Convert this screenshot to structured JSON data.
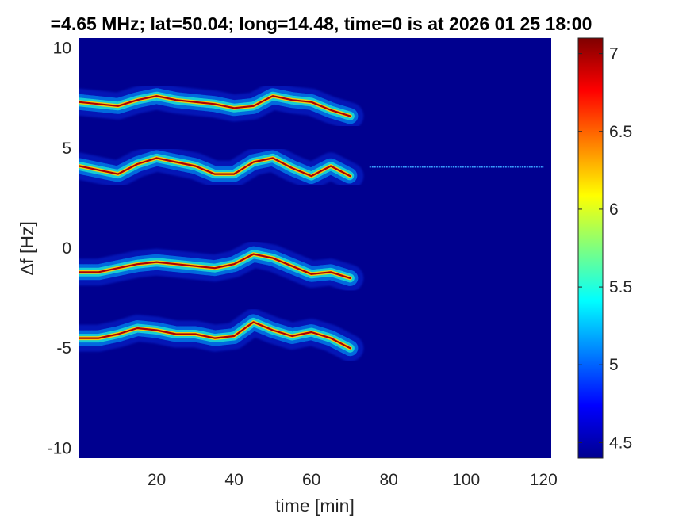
{
  "chart_data": {
    "type": "heatmap",
    "title": "=4.65 MHz;  lat=50.04; long=14.48, time=0 is at 2026 01 25 18:00",
    "xlabel": "time [min]",
    "ylabel": "∆f [Hz]",
    "xlim": [
      0,
      122
    ],
    "ylim": [
      -10.5,
      10.5
    ],
    "x_ticks": [
      20,
      40,
      60,
      80,
      100,
      120
    ],
    "y_ticks": [
      -10,
      -5,
      0,
      5,
      10
    ],
    "colormap": "jet",
    "background_color": "#00008f",
    "colorbar": {
      "range": [
        4.4,
        7.1
      ],
      "ticks": [
        4.5,
        5,
        5.5,
        6,
        6.5,
        7
      ]
    },
    "traces": [
      {
        "x": [
          0,
          5,
          10,
          15,
          20,
          25,
          30,
          35,
          40,
          45,
          50,
          55,
          60,
          65,
          70
        ],
        "y": [
          7.3,
          7.2,
          7.1,
          7.4,
          7.6,
          7.4,
          7.3,
          7.2,
          7.0,
          7.1,
          7.6,
          7.4,
          7.3,
          6.9,
          6.6
        ]
      },
      {
        "x": [
          0,
          5,
          10,
          15,
          20,
          25,
          30,
          35,
          40,
          45,
          50,
          55,
          60,
          65,
          70
        ],
        "y": [
          4.1,
          3.9,
          3.7,
          4.2,
          4.5,
          4.3,
          4.1,
          3.7,
          3.7,
          4.3,
          4.5,
          4.0,
          3.6,
          4.1,
          3.6
        ]
      },
      {
        "x": [
          0,
          5,
          10,
          15,
          20,
          25,
          30,
          35,
          40,
          45,
          50,
          55,
          60,
          65,
          70
        ],
        "y": [
          -1.2,
          -1.2,
          -1.0,
          -0.8,
          -0.7,
          -0.8,
          -0.9,
          -1.0,
          -0.8,
          -0.3,
          -0.5,
          -0.9,
          -1.3,
          -1.2,
          -1.5
        ]
      },
      {
        "x": [
          0,
          5,
          10,
          15,
          20,
          25,
          30,
          35,
          40,
          45,
          50,
          55,
          60,
          65,
          70
        ],
        "y": [
          -4.5,
          -4.5,
          -4.3,
          -4.0,
          -4.1,
          -4.3,
          -4.3,
          -4.5,
          -4.4,
          -3.7,
          -4.1,
          -4.4,
          -4.2,
          -4.5,
          -5.0
        ]
      }
    ],
    "carrier_line": {
      "y": 4.05,
      "x": [
        75,
        120
      ]
    }
  }
}
